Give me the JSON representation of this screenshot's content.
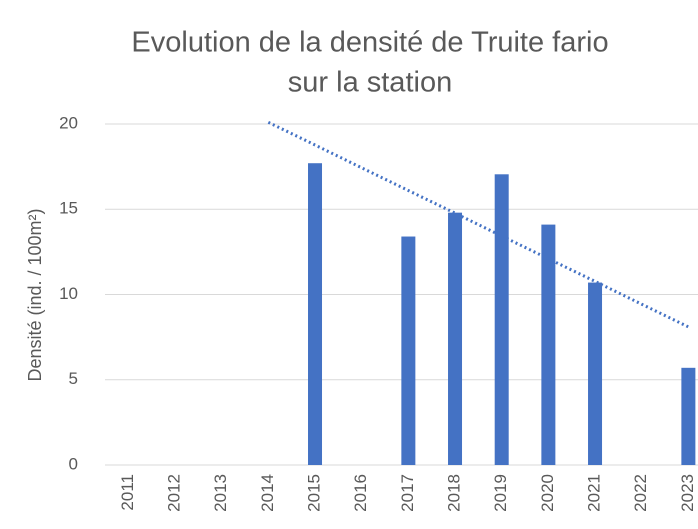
{
  "chart_data": {
    "type": "bar",
    "title": [
      "Evolution de la densité de Truite fario",
      "sur la station"
    ],
    "ylabel": "Densité (ind. / 100m²)",
    "categories": [
      "2011",
      "2012",
      "2013",
      "2014",
      "2015",
      "2016",
      "2017",
      "2018",
      "2019",
      "2020",
      "2021",
      "2022",
      "2023"
    ],
    "values": [
      null,
      null,
      null,
      null,
      17.7,
      null,
      13.4,
      14.8,
      17.05,
      14.1,
      10.7,
      null,
      5.7
    ],
    "color": "#4472c4",
    "trendline": {
      "color": "#4472c4",
      "style": "dotted",
      "values": [
        null,
        null,
        null,
        20.1,
        18.77,
        17.43,
        16.1,
        14.77,
        13.43,
        12.1,
        10.77,
        9.43,
        8.1
      ]
    },
    "ylim": [
      0,
      20
    ],
    "yticks": [
      0,
      5,
      10,
      15,
      20
    ],
    "grid": true
  }
}
